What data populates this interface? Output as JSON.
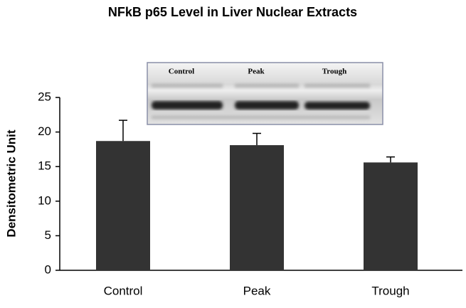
{
  "chart_data": {
    "type": "bar",
    "title": "NFkB p65 Level in Liver Nuclear Extracts",
    "y_label": "Densitometric Unit",
    "categories": [
      "Control",
      "Peak",
      "Trough"
    ],
    "values": [
      18.7,
      18.1,
      15.6
    ],
    "errors": [
      3.0,
      1.7,
      0.8
    ],
    "color": "#333333",
    "ylim": [
      0,
      25
    ],
    "yticks": [
      0,
      5,
      10,
      15,
      20,
      25
    ],
    "grid": false,
    "blot_labels": [
      "Control",
      "Peak",
      "Trough"
    ]
  }
}
